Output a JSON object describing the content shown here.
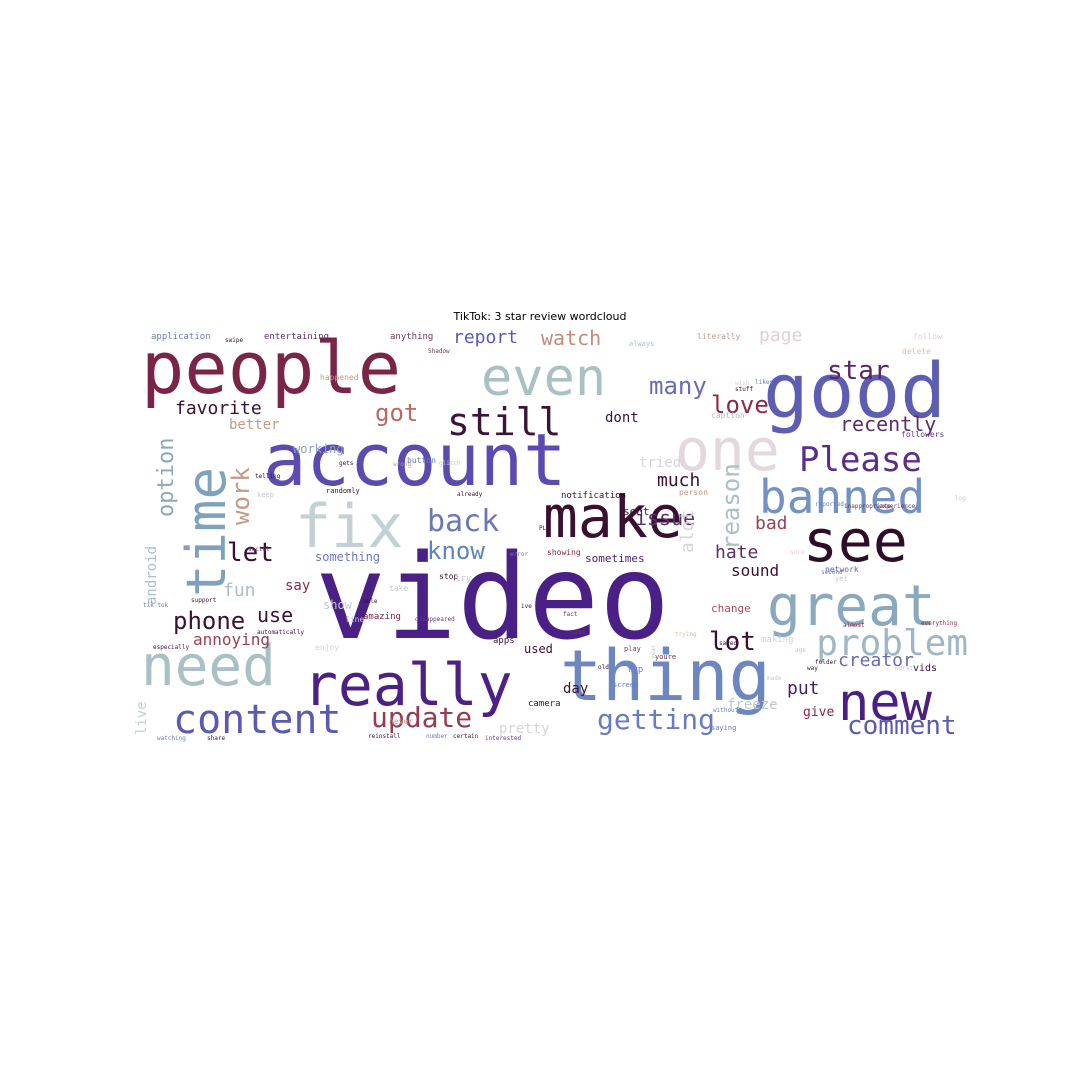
{
  "title": "TikTok: 3 star review wordcloud",
  "words": [
    {
      "text": "video",
      "color": "#4a1f86"
    },
    {
      "text": "account",
      "color": "#5b4ab0"
    },
    {
      "text": "people",
      "color": "#7a2547"
    },
    {
      "text": "good",
      "color": "#5d5db4"
    },
    {
      "text": "even",
      "color": "#a9c1c3"
    },
    {
      "text": "make",
      "color": "#3a0f30"
    },
    {
      "text": "thing",
      "color": "#6c86c0"
    },
    {
      "text": "really",
      "color": "#4c2186"
    },
    {
      "text": "see",
      "color": "#2e0d28"
    },
    {
      "text": "great",
      "color": "#8aa9bf"
    },
    {
      "text": "need",
      "color": "#a9c0c4"
    },
    {
      "text": "new",
      "color": "#4a2084"
    },
    {
      "text": "time",
      "color": "#7ea2bd"
    },
    {
      "text": "fix",
      "color": "#c2d1d3"
    },
    {
      "text": "one",
      "color": "#e3d8dd"
    },
    {
      "text": "banned",
      "color": "#7392c4"
    },
    {
      "text": "still",
      "color": "#3b1438"
    },
    {
      "text": "Please",
      "color": "#5a2f88"
    },
    {
      "text": "content",
      "color": "#5a5ab3"
    },
    {
      "text": "problem",
      "color": "#9db7c4"
    },
    {
      "text": "back",
      "color": "#6a78b8"
    },
    {
      "text": "getting",
      "color": "#6a7bbf"
    },
    {
      "text": "update",
      "color": "#963b50"
    },
    {
      "text": "comment",
      "color": "#5a5ab3"
    },
    {
      "text": "love",
      "color": "#8a2a44"
    },
    {
      "text": "many",
      "color": "#6a6ab4"
    },
    {
      "text": "got",
      "color": "#b86a5e"
    },
    {
      "text": "know",
      "color": "#5e84bf"
    },
    {
      "text": "star",
      "color": "#5a2560"
    },
    {
      "text": "phone",
      "color": "#3a1232"
    },
    {
      "text": "work",
      "color": "#c29a8a"
    },
    {
      "text": "let",
      "color": "#3a0f30"
    },
    {
      "text": "lot",
      "color": "#3a0f30"
    },
    {
      "text": "reason",
      "color": "#a9c0c4"
    },
    {
      "text": "option",
      "color": "#8aa9bf"
    },
    {
      "text": "watch",
      "color": "#c28a7a"
    },
    {
      "text": "recently",
      "color": "#5a2f6a"
    },
    {
      "text": "issue",
      "color": "#5a2f6a"
    },
    {
      "text": "favorite",
      "color": "#3a1232"
    },
    {
      "text": "page",
      "color": "#e0cfd6"
    },
    {
      "text": "much",
      "color": "#3a1232"
    },
    {
      "text": "put",
      "color": "#4a1f6a"
    },
    {
      "text": "creator",
      "color": "#6a6ab4"
    },
    {
      "text": "hate",
      "color": "#5a2f6a"
    },
    {
      "text": "bad",
      "color": "#9a4050"
    },
    {
      "text": "fun",
      "color": "#a9c0c4"
    },
    {
      "text": "use",
      "color": "#3a1232"
    },
    {
      "text": "report",
      "color": "#5a5ab3"
    },
    {
      "text": "annoying",
      "color": "#9a4050"
    },
    {
      "text": "alot",
      "color": "#d6d3dc"
    },
    {
      "text": "sound",
      "color": "#3a1232"
    },
    {
      "text": "android",
      "color": "#a9c0c4"
    },
    {
      "text": "user",
      "color": "#6a7bbf"
    },
    {
      "text": "say",
      "color": "#8a2a44"
    },
    {
      "text": "dont",
      "color": "#3a1232"
    },
    {
      "text": "tried",
      "color": "#d6d3dc"
    },
    {
      "text": "better",
      "color": "#c29a8a"
    },
    {
      "text": "working",
      "color": "#8aa0c4"
    },
    {
      "text": "something",
      "color": "#6a7bbf"
    },
    {
      "text": "day",
      "color": "#3a1232"
    },
    {
      "text": "pretty",
      "color": "#d6d3dc"
    },
    {
      "text": "freeze",
      "color": "#c2c8d0"
    },
    {
      "text": "give",
      "color": "#8a2a44"
    },
    {
      "text": "live",
      "color": "#c2d1d3"
    },
    {
      "text": "change",
      "color": "#a94a5a"
    },
    {
      "text": "show",
      "color": "#c2c8d0"
    },
    {
      "text": "used",
      "color": "#3a1232"
    },
    {
      "text": "sometimes",
      "color": "#4a1f6a"
    },
    {
      "text": "sent",
      "color": "#3a1232"
    },
    {
      "text": "entertaining",
      "color": "#5a2f6a"
    },
    {
      "text": "application",
      "color": "#6a7bbf"
    },
    {
      "text": "anything",
      "color": "#6a3a5a"
    },
    {
      "text": "literally",
      "color": "#c29a8a"
    },
    {
      "text": "follow",
      "color": "#e0cfd6"
    },
    {
      "text": "followers",
      "color": "#6a3a8a"
    },
    {
      "text": "notification",
      "color": "#3a1232"
    },
    {
      "text": "amazing",
      "color": "#7a2547"
    },
    {
      "text": "network",
      "color": "#5a5ab3"
    },
    {
      "text": "happened",
      "color": "#c29a8a"
    },
    {
      "text": "delete",
      "color": "#e0bcaa"
    },
    {
      "text": "caption",
      "color": "#a9c0c4"
    },
    {
      "text": "button",
      "color": "#6a7bbf"
    },
    {
      "text": "camera",
      "color": "#3a1232"
    },
    {
      "text": "stop",
      "color": "#3a1232"
    },
    {
      "text": "apps",
      "color": "#3a1232"
    },
    {
      "text": "fyp",
      "color": "#6a7bbf"
    },
    {
      "text": "vids",
      "color": "#3a1232"
    },
    {
      "text": "making",
      "color": "#e0cfd6"
    },
    {
      "text": "never",
      "color": "#c29a8a"
    },
    {
      "text": "inappropriate",
      "color": "#6a3a5a"
    },
    {
      "text": "especially",
      "color": "#3a1232"
    },
    {
      "text": "everything",
      "color": "#8a2a44"
    },
    {
      "text": "randomly",
      "color": "#3a1232"
    },
    {
      "text": "Shadow",
      "color": "#6a3a5a"
    },
    {
      "text": "always",
      "color": "#a9c0c4"
    },
    {
      "text": "enjoy",
      "color": "#e0cfd6"
    },
    {
      "text": "screen",
      "color": "#6a7bbf"
    },
    {
      "text": "folder",
      "color": "#3a1232"
    },
    {
      "text": "saying",
      "color": "#6a7bbf"
    },
    {
      "text": "watching",
      "color": "#6a7bbf"
    },
    {
      "text": "share",
      "color": "#3a1232"
    },
    {
      "text": "reinstall",
      "color": "#3a1232"
    },
    {
      "text": "number",
      "color": "#6a7bbf"
    },
    {
      "text": "certain",
      "color": "#3a1232"
    },
    {
      "text": "interested",
      "color": "#6a3a8a"
    },
    {
      "text": "without",
      "color": "#6a7bbf"
    },
    {
      "text": "second",
      "color": "#6a7bbf"
    },
    {
      "text": "almost",
      "color": "#8a2a44"
    },
    {
      "text": "experience",
      "color": "#6a3a5a"
    },
    {
      "text": "reported",
      "color": "#6a7bbf"
    },
    {
      "text": "person",
      "color": "#c29a8a"
    },
    {
      "text": "play",
      "color": "#6a3a5a"
    },
    {
      "text": "try",
      "color": "#c2c8d0"
    },
    {
      "text": "take",
      "color": "#c2c8d0"
    },
    {
      "text": "fine",
      "color": "#c2c8d0"
    },
    {
      "text": "keep",
      "color": "#c2c8d0"
    },
    {
      "text": "social",
      "color": "#6a3a5a"
    },
    {
      "text": "able",
      "color": "#3a1232"
    },
    {
      "text": "already",
      "color": "#3a1232"
    },
    {
      "text": "disappeared",
      "color": "#6a3a8a"
    },
    {
      "text": "support",
      "color": "#3a1232"
    },
    {
      "text": "tik tok",
      "color": "#6a7bbf"
    },
    {
      "text": "automatically",
      "color": "#3a1232"
    },
    {
      "text": "showing",
      "color": "#8a2a44"
    },
    {
      "text": "stuff",
      "color": "#3a1232"
    },
    {
      "text": "likes",
      "color": "#6a7bbf"
    },
    {
      "text": "swipe",
      "color": "#3a1232"
    },
    {
      "text": "saved",
      "color": "#3a1232"
    },
    {
      "text": "trying",
      "color": "#e0bcaa"
    },
    {
      "text": "wish",
      "color": "#e0cfd6"
    },
    {
      "text": "telling",
      "color": "#3a1232"
    },
    {
      "text": "gets",
      "color": "#3a1232"
    },
    {
      "text": "wrong",
      "color": "#c29a8a"
    },
    {
      "text": "glitch",
      "color": "#c2c8d0"
    },
    {
      "text": "error",
      "color": "#6a7bbf"
    },
    {
      "text": "old",
      "color": "#3a1232"
    },
    {
      "text": "PLZ",
      "color": "#3a1232"
    },
    {
      "text": "fact",
      "color": "#6a3a5a"
    },
    {
      "text": "seem",
      "color": "#6a3a5a"
    },
    {
      "text": "youre",
      "color": "#6a3a5a"
    },
    {
      "text": "ive",
      "color": "#3a1232"
    },
    {
      "text": "log",
      "color": "#c2c8d0"
    },
    {
      "text": "year",
      "color": "#c2c8d0"
    },
    {
      "text": "way",
      "color": "#3a1232"
    },
    {
      "text": "sure",
      "color": "#e0cfd6"
    },
    {
      "text": "yet",
      "color": "#c2c8d0"
    },
    {
      "text": "age",
      "color": "#e0bcaa"
    },
    {
      "text": "worst",
      "color": "#c2c8d0"
    },
    {
      "text": "made",
      "color": "#c2c8d0"
    }
  ]
}
